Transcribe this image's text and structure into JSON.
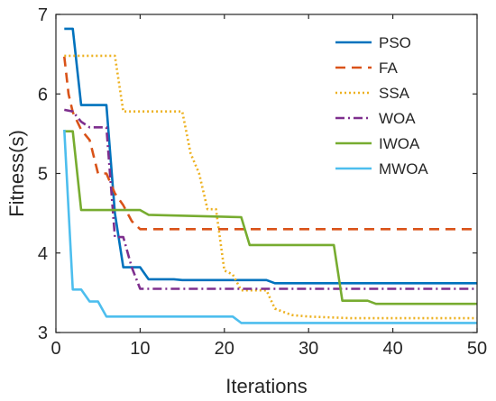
{
  "chart_data": {
    "type": "line",
    "title": "",
    "xlabel": "Iterations",
    "ylabel": "Fitness(s)",
    "xlim": [
      0,
      50
    ],
    "ylim": [
      3,
      7
    ],
    "xticks": [
      0,
      10,
      20,
      30,
      40,
      50
    ],
    "yticks": [
      3,
      4,
      5,
      6,
      7
    ],
    "grid": false,
    "legend_position": "top-right",
    "series": [
      {
        "name": "PSO",
        "color": "#0072BD",
        "dash": "solid",
        "points": [
          [
            1,
            6.82
          ],
          [
            2,
            6.82
          ],
          [
            3,
            5.86
          ],
          [
            5,
            5.86
          ],
          [
            6,
            5.86
          ],
          [
            7,
            4.5
          ],
          [
            8,
            3.82
          ],
          [
            9,
            3.82
          ],
          [
            10,
            3.82
          ],
          [
            11,
            3.67
          ],
          [
            14,
            3.67
          ],
          [
            15,
            3.66
          ],
          [
            25,
            3.66
          ],
          [
            26,
            3.62
          ],
          [
            50,
            3.62
          ]
        ]
      },
      {
        "name": "FA",
        "color": "#D95319",
        "dash": "dashed",
        "points": [
          [
            1,
            6.47
          ],
          [
            1.5,
            6.0
          ],
          [
            2,
            5.77
          ],
          [
            3,
            5.55
          ],
          [
            4,
            5.42
          ],
          [
            5,
            5.0
          ],
          [
            6,
            5.0
          ],
          [
            7,
            4.75
          ],
          [
            8,
            4.6
          ],
          [
            9,
            4.4
          ],
          [
            10,
            4.3
          ],
          [
            50,
            4.3
          ]
        ]
      },
      {
        "name": "SSA",
        "color": "#EDB120",
        "dash": "dotted",
        "points": [
          [
            1,
            6.48
          ],
          [
            7,
            6.48
          ],
          [
            8,
            5.78
          ],
          [
            15,
            5.78
          ],
          [
            16,
            5.25
          ],
          [
            17,
            5.0
          ],
          [
            18,
            4.55
          ],
          [
            19,
            4.55
          ],
          [
            20,
            3.78
          ],
          [
            21,
            3.73
          ],
          [
            22,
            3.53
          ],
          [
            25,
            3.53
          ],
          [
            26,
            3.3
          ],
          [
            28,
            3.22
          ],
          [
            30,
            3.2
          ],
          [
            35,
            3.18
          ],
          [
            50,
            3.18
          ]
        ]
      },
      {
        "name": "WOA",
        "color": "#7E2F8E",
        "dash": "dashdot",
        "points": [
          [
            1,
            5.8
          ],
          [
            2,
            5.78
          ],
          [
            3,
            5.65
          ],
          [
            4,
            5.58
          ],
          [
            6,
            5.58
          ],
          [
            7,
            4.2
          ],
          [
            8,
            4.2
          ],
          [
            9,
            3.82
          ],
          [
            10,
            3.55
          ],
          [
            50,
            3.55
          ]
        ]
      },
      {
        "name": "IWOA",
        "color": "#77AC30",
        "dash": "solid",
        "points": [
          [
            1,
            5.53
          ],
          [
            2,
            5.53
          ],
          [
            3,
            4.54
          ],
          [
            7,
            4.54
          ],
          [
            10,
            4.54
          ],
          [
            11,
            4.48
          ],
          [
            22,
            4.45
          ],
          [
            23,
            4.1
          ],
          [
            33,
            4.1
          ],
          [
            34,
            3.4
          ],
          [
            37,
            3.4
          ],
          [
            38,
            3.36
          ],
          [
            50,
            3.36
          ]
        ]
      },
      {
        "name": "MWOA",
        "color": "#4DBEEE",
        "dash": "solid",
        "points": [
          [
            1,
            5.55
          ],
          [
            2,
            3.54
          ],
          [
            3,
            3.54
          ],
          [
            4,
            3.39
          ],
          [
            5,
            3.39
          ],
          [
            6,
            3.2
          ],
          [
            21,
            3.2
          ],
          [
            22,
            3.12
          ],
          [
            50,
            3.12
          ]
        ]
      }
    ]
  }
}
